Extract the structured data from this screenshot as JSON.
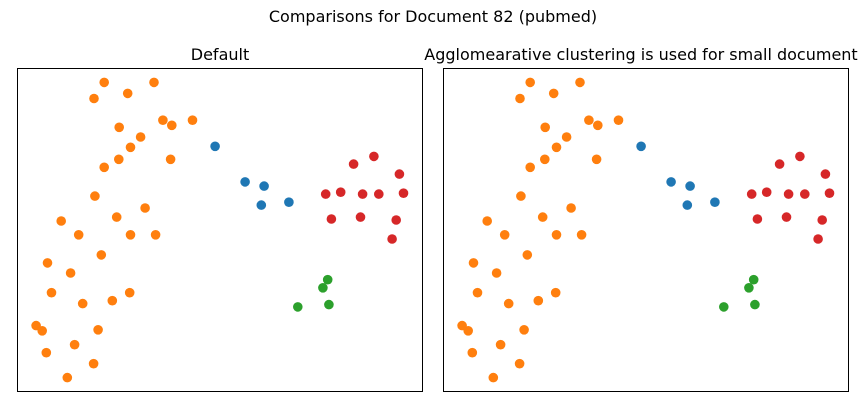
{
  "figure": {
    "suptitle": "Comparisons for Document 82 (pubmed)"
  },
  "colors": {
    "c0": "#1f77b4",
    "c1": "#ff7f0e",
    "c2": "#2ca02c",
    "c3": "#d62728"
  },
  "chart_data": [
    {
      "type": "scatter",
      "title": "Default",
      "xlabel": "",
      "ylabel": "",
      "grid": false,
      "axes_ticks": false,
      "xlim": [
        0,
        100
      ],
      "ylim": [
        0,
        100
      ],
      "series": [
        {
          "cluster": 0,
          "color": "#1f77b4",
          "points": [
            [
              48.8,
              75.9
            ],
            [
              56.2,
              64.9
            ],
            [
              60.9,
              63.6
            ],
            [
              60.2,
              57.7
            ],
            [
              67.0,
              58.6
            ]
          ]
        },
        {
          "cluster": 1,
          "color": "#ff7f0e",
          "points": [
            [
              21.4,
              95.7
            ],
            [
              33.7,
              95.7
            ],
            [
              18.9,
              90.7
            ],
            [
              27.2,
              92.3
            ],
            [
              35.9,
              84.0
            ],
            [
              38.1,
              82.4
            ],
            [
              43.2,
              84.0
            ],
            [
              25.1,
              81.8
            ],
            [
              30.4,
              78.8
            ],
            [
              27.9,
              75.6
            ],
            [
              25.0,
              71.9
            ],
            [
              21.4,
              69.4
            ],
            [
              37.8,
              71.9
            ],
            [
              19.1,
              60.5
            ],
            [
              31.5,
              56.8
            ],
            [
              24.5,
              54.0
            ],
            [
              10.8,
              52.8
            ],
            [
              15.1,
              48.5
            ],
            [
              27.9,
              48.5
            ],
            [
              34.1,
              48.5
            ],
            [
              20.7,
              42.3
            ],
            [
              7.4,
              39.8
            ],
            [
              13.1,
              36.7
            ],
            [
              8.4,
              30.6
            ],
            [
              16.1,
              27.2
            ],
            [
              23.4,
              28.1
            ],
            [
              27.7,
              30.6
            ],
            [
              4.6,
              20.4
            ],
            [
              6.1,
              18.8
            ],
            [
              19.9,
              19.1
            ],
            [
              7.1,
              12.0
            ],
            [
              14.1,
              14.5
            ],
            [
              18.8,
              8.6
            ],
            [
              12.3,
              4.3
            ]
          ]
        },
        {
          "cluster": 2,
          "color": "#2ca02c",
          "points": [
            [
              76.6,
              34.6
            ],
            [
              75.4,
              32.1
            ],
            [
              76.9,
              26.9
            ],
            [
              69.2,
              26.2
            ]
          ]
        },
        {
          "cluster": 3,
          "color": "#d62728",
          "points": [
            [
              83.0,
              70.4
            ],
            [
              88.0,
              72.8
            ],
            [
              94.3,
              67.3
            ],
            [
              76.1,
              61.1
            ],
            [
              79.8,
              61.7
            ],
            [
              85.2,
              61.1
            ],
            [
              89.2,
              61.1
            ],
            [
              95.3,
              61.4
            ],
            [
              77.5,
              53.4
            ],
            [
              84.7,
              54.0
            ],
            [
              93.5,
              53.1
            ],
            [
              92.5,
              47.2
            ]
          ]
        }
      ]
    },
    {
      "type": "scatter",
      "title": "Agglomearative clustering is used for small document",
      "xlabel": "",
      "ylabel": "",
      "grid": false,
      "axes_ticks": false,
      "xlim": [
        0,
        100
      ],
      "ylim": [
        0,
        100
      ],
      "series": [
        {
          "cluster": 0,
          "color": "#1f77b4",
          "points": [
            [
              48.8,
              75.9
            ],
            [
              56.2,
              64.9
            ],
            [
              60.9,
              63.6
            ],
            [
              60.2,
              57.7
            ],
            [
              67.0,
              58.6
            ]
          ]
        },
        {
          "cluster": 1,
          "color": "#ff7f0e",
          "points": [
            [
              21.4,
              95.7
            ],
            [
              33.7,
              95.7
            ],
            [
              18.9,
              90.7
            ],
            [
              27.2,
              92.3
            ],
            [
              35.9,
              84.0
            ],
            [
              38.1,
              82.4
            ],
            [
              43.2,
              84.0
            ],
            [
              25.1,
              81.8
            ],
            [
              30.4,
              78.8
            ],
            [
              27.9,
              75.6
            ],
            [
              25.0,
              71.9
            ],
            [
              21.4,
              69.4
            ],
            [
              37.8,
              71.9
            ],
            [
              19.1,
              60.5
            ],
            [
              31.5,
              56.8
            ],
            [
              24.5,
              54.0
            ],
            [
              10.8,
              52.8
            ],
            [
              15.1,
              48.5
            ],
            [
              27.9,
              48.5
            ],
            [
              34.1,
              48.5
            ],
            [
              20.7,
              42.3
            ],
            [
              7.4,
              39.8
            ],
            [
              13.1,
              36.7
            ],
            [
              8.4,
              30.6
            ],
            [
              16.1,
              27.2
            ],
            [
              23.4,
              28.1
            ],
            [
              27.7,
              30.6
            ],
            [
              4.6,
              20.4
            ],
            [
              6.1,
              18.8
            ],
            [
              19.9,
              19.1
            ],
            [
              7.1,
              12.0
            ],
            [
              14.1,
              14.5
            ],
            [
              18.8,
              8.6
            ],
            [
              12.3,
              4.3
            ]
          ]
        },
        {
          "cluster": 2,
          "color": "#2ca02c",
          "points": [
            [
              76.6,
              34.6
            ],
            [
              75.4,
              32.1
            ],
            [
              76.9,
              26.9
            ],
            [
              69.2,
              26.2
            ]
          ]
        },
        {
          "cluster": 3,
          "color": "#d62728",
          "points": [
            [
              83.0,
              70.4
            ],
            [
              88.0,
              72.8
            ],
            [
              94.3,
              67.3
            ],
            [
              76.1,
              61.1
            ],
            [
              79.8,
              61.7
            ],
            [
              85.2,
              61.1
            ],
            [
              89.2,
              61.1
            ],
            [
              95.3,
              61.4
            ],
            [
              77.5,
              53.4
            ],
            [
              84.7,
              54.0
            ],
            [
              93.5,
              53.1
            ],
            [
              92.5,
              47.2
            ]
          ]
        }
      ]
    }
  ]
}
